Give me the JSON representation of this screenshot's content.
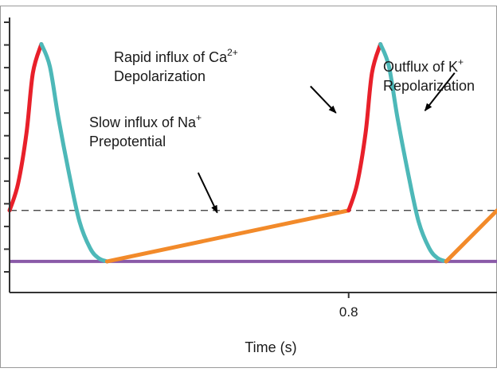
{
  "chart_data": {
    "type": "line",
    "title": "",
    "xlabel": "Time (s)",
    "ylabel": "",
    "x_ticks": [
      {
        "value": 0.8,
        "label": "0.8"
      }
    ],
    "xlim": [
      0.0,
      1.15
    ],
    "ylim": [
      -0.14,
      1.1
    ],
    "y_tick_count": 12,
    "threshold_level": 0.23,
    "resting_level": 0.0,
    "colors": {
      "depolarization": "#e8202a",
      "repolarization": "#4db8b8",
      "prepotential": "#f28a2a",
      "resting_line": "#8a5aa8",
      "threshold_line": "#333333",
      "axis": "#333333"
    },
    "series": [
      {
        "phase": "depolarization",
        "points": [
          [
            0.0,
            0.23
          ],
          [
            0.02,
            0.35
          ],
          [
            0.04,
            0.58
          ],
          [
            0.055,
            0.85
          ],
          [
            0.075,
            0.98
          ]
        ]
      },
      {
        "phase": "repolarization",
        "points": [
          [
            0.075,
            0.98
          ],
          [
            0.095,
            0.88
          ],
          [
            0.115,
            0.65
          ],
          [
            0.14,
            0.4
          ],
          [
            0.165,
            0.18
          ],
          [
            0.19,
            0.06
          ],
          [
            0.21,
            0.015
          ],
          [
            0.23,
            0.0
          ]
        ]
      },
      {
        "phase": "prepotential",
        "points": [
          [
            0.23,
            0.0
          ],
          [
            0.8,
            0.23
          ]
        ]
      },
      {
        "phase": "depolarization",
        "points": [
          [
            0.8,
            0.23
          ],
          [
            0.82,
            0.35
          ],
          [
            0.84,
            0.58
          ],
          [
            0.855,
            0.85
          ],
          [
            0.875,
            0.98
          ]
        ]
      },
      {
        "phase": "repolarization",
        "points": [
          [
            0.875,
            0.98
          ],
          [
            0.895,
            0.88
          ],
          [
            0.915,
            0.65
          ],
          [
            0.94,
            0.4
          ],
          [
            0.965,
            0.18
          ],
          [
            0.99,
            0.06
          ],
          [
            1.01,
            0.015
          ],
          [
            1.03,
            0.0
          ]
        ]
      },
      {
        "phase": "prepotential",
        "points": [
          [
            1.03,
            0.0
          ],
          [
            1.15,
            0.23
          ]
        ]
      }
    ],
    "annotations": [
      {
        "id": "slow-na",
        "lines": [
          {
            "text": "Slow influx of Na",
            "sup": "+"
          },
          {
            "text": "Prepotential",
            "sup": ""
          }
        ],
        "arrow_from": [
          0.445,
          0.4
        ],
        "arrow_to": [
          0.49,
          0.22
        ]
      },
      {
        "id": "rapid-ca",
        "lines": [
          {
            "text": "Rapid influx of Ca",
            "sup": "2+"
          },
          {
            "text": "Depolarization",
            "sup": ""
          }
        ],
        "arrow_from": [
          0.71,
          0.79
        ],
        "arrow_to": [
          0.77,
          0.67
        ]
      },
      {
        "id": "outflux-k",
        "lines": [
          {
            "text": "Outflux of K",
            "sup": "+"
          },
          {
            "text": "Repolarization",
            "sup": ""
          }
        ],
        "arrow_from": [
          1.05,
          0.85
        ],
        "arrow_to": [
          0.98,
          0.68
        ]
      }
    ]
  }
}
